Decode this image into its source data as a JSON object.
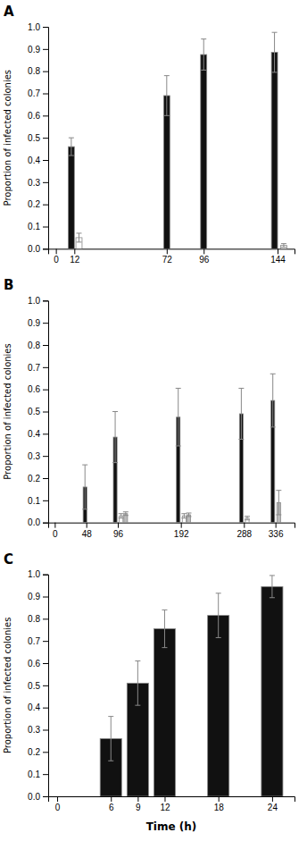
{
  "chart_data": [
    {
      "type": "bar",
      "title": "A",
      "ylabel": "Proportion of infected colonies",
      "x": [
        10,
        15,
        72,
        96,
        142,
        148
      ],
      "values": [
        0.46,
        0.05,
        0.69,
        0.875,
        0.885,
        0.015
      ],
      "errors": [
        0.04,
        0.02,
        0.09,
        0.07,
        0.09,
        0.008
      ],
      "colors": [
        "#111111",
        "#ffffff",
        "#111111",
        "#111111",
        "#111111",
        "#ffffff"
      ],
      "xlim": [
        -5,
        155
      ],
      "xticks": [
        0,
        12,
        72,
        96,
        144
      ],
      "ylim": [
        0,
        1.0
      ],
      "yticks": [
        {
          "value": 0.0,
          "label": "0.0"
        },
        0.1,
        0.2,
        0.3,
        0.4,
        0.5,
        0.6,
        0.7,
        0.8,
        0.9,
        {
          "value": 1.0,
          "label": "1.0"
        }
      ]
    },
    {
      "type": "bar",
      "title": "B",
      "ylabel": "Proportion of infected colonies",
      "x": [
        46,
        92,
        101,
        108,
        188,
        197,
        204,
        284,
        293,
        332,
        341
      ],
      "values": [
        0.16,
        0.385,
        0.03,
        0.04,
        0.475,
        0.03,
        0.035,
        0.49,
        0.02,
        0.55,
        0.09
      ],
      "errors": [
        0.1,
        0.115,
        0.01,
        0.008,
        0.13,
        0.01,
        0.008,
        0.115,
        0.008,
        0.12,
        0.055
      ],
      "colors": [
        "#111111",
        "#111111",
        "#ffffff",
        "#bbbbbb",
        "#111111",
        "#ffffff",
        "#bbbbbb",
        "#111111",
        "#ffffff",
        "#111111",
        "#bbbbbb"
      ],
      "xlim": [
        -10,
        365
      ],
      "xticks": [
        0,
        48,
        96,
        192,
        288,
        336
      ],
      "ylim": [
        0,
        1.0
      ],
      "yticks": [
        {
          "value": 0.0,
          "label": "0.0"
        },
        0.1,
        0.2,
        0.3,
        0.4,
        0.5,
        0.6,
        0.7,
        0.8,
        0.9,
        {
          "value": 1.0,
          "label": "1.0"
        }
      ]
    },
    {
      "type": "bar",
      "title": "C",
      "ylabel": "Proportion of infected colonies",
      "xlabel": "Time (h)",
      "x": [
        6,
        9,
        12,
        18,
        24
      ],
      "values": [
        0.26,
        0.51,
        0.755,
        0.815,
        0.945
      ],
      "errors": [
        0.1,
        0.1,
        0.085,
        0.1,
        0.05
      ],
      "colors": [
        "#111111",
        "#111111",
        "#111111",
        "#111111",
        "#111111"
      ],
      "xlim": [
        -1,
        26.5
      ],
      "xticks": [
        0,
        6,
        9,
        12,
        18,
        24
      ],
      "ylim": [
        0,
        1.0
      ],
      "yticks": [
        {
          "value": 0.0,
          "label": "0.0"
        },
        0.1,
        0.2,
        0.3,
        0.4,
        0.5,
        0.6,
        0.7,
        0.8,
        0.9,
        {
          "value": 1.0,
          "label": "1.0"
        }
      ]
    }
  ]
}
